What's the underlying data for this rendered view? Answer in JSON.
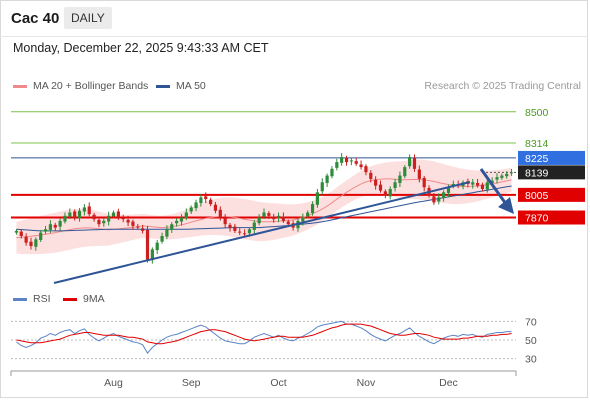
{
  "header": {
    "title": "Cac 40",
    "period": "DAILY"
  },
  "timestamp": "Monday, December 22, 2025 9:43:33 AM CET",
  "legend": {
    "ma": "MA 20 + Bollinger Bands",
    "ma50": "MA 50",
    "credit": "Research © 2025 Trading Central",
    "rsi": "RSI",
    "rsi_ma": "9MA"
  },
  "colors": {
    "candle_up": "#2e8b3a",
    "candle_down": "#cc1f1f",
    "bollinger_fill": "#fbd6d6",
    "ma20": "#f08a8a",
    "ma50": "#2f5597",
    "resistance": "#e00000",
    "support_line": "#2f5597",
    "green_level": "#7cc34a",
    "rsi": "#5b84c4",
    "rsi_ma": "#e00000"
  },
  "chart_data": [
    {
      "type": "candlestick",
      "ylim": [
        7450,
        8600
      ],
      "x_ticks": [
        "Aug",
        "Sep",
        "Oct",
        "Nov",
        "Dec"
      ],
      "levels": [
        {
          "label": "8500",
          "value": 8500,
          "style": "green"
        },
        {
          "label": "8314",
          "value": 8314,
          "style": "green"
        },
        {
          "label": "8225",
          "value": 8225,
          "style": "blue"
        },
        {
          "label": "8139",
          "value": 8139,
          "style": "current"
        },
        {
          "label": "8005",
          "value": 8005,
          "style": "red"
        },
        {
          "label": "7870",
          "value": 7870,
          "style": "red"
        }
      ],
      "close": [
        7790,
        7760,
        7720,
        7700,
        7740,
        7780,
        7800,
        7830,
        7810,
        7850,
        7880,
        7900,
        7870,
        7910,
        7930,
        7890,
        7860,
        7830,
        7850,
        7880,
        7900,
        7870,
        7860,
        7840,
        7820,
        7810,
        7790,
        7620,
        7680,
        7720,
        7760,
        7800,
        7830,
        7850,
        7870,
        7900,
        7930,
        7960,
        7990,
        7980,
        7950,
        7910,
        7870,
        7830,
        7810,
        7790,
        7780,
        7770,
        7800,
        7840,
        7870,
        7900,
        7880,
        7860,
        7880,
        7850,
        7830,
        7810,
        7850,
        7870,
        7900,
        7950,
        8020,
        8080,
        8120,
        8160,
        8200,
        8230,
        8200,
        8210,
        8190,
        8170,
        8140,
        8100,
        8060,
        8030,
        8000,
        8040,
        8080,
        8120,
        8170,
        8230,
        8160,
        8100,
        8050,
        8000,
        7960,
        7990,
        8020,
        8050,
        8070,
        8060,
        8080,
        8070,
        8080,
        8060,
        8040,
        8080,
        8090,
        8110,
        8120,
        8130,
        8139
      ],
      "ma20": [
        7750,
        7752,
        7755,
        7758,
        7762,
        7766,
        7770,
        7775,
        7780,
        7786,
        7792,
        7798,
        7803,
        7806,
        7808,
        7808,
        7806,
        7803,
        7800,
        7797,
        7800,
        7802,
        7805,
        7808,
        7812,
        7816,
        7820,
        7818,
        7815,
        7812,
        7810,
        7812,
        7815,
        7820,
        7826,
        7834,
        7842,
        7850,
        7858,
        7865,
        7870,
        7874,
        7876,
        7876,
        7874,
        7870,
        7865,
        7860,
        7855,
        7850,
        7846,
        7845,
        7845,
        7846,
        7848,
        7850,
        7852,
        7856,
        7862,
        7870,
        7880,
        7892,
        7905,
        7920,
        7938,
        7958,
        7980,
        8000,
        8020,
        8038,
        8055,
        8070,
        8082,
        8090,
        8095,
        8098,
        8100,
        8100,
        8098,
        8096,
        8095,
        8096,
        8097,
        8096,
        8094,
        8090,
        8085,
        8078,
        8072,
        8066,
        8062,
        8058,
        8056,
        8055,
        8056,
        8058,
        8062,
        8066,
        8070,
        8076,
        8082,
        8088,
        8095
      ],
      "ma50": [
        7800,
        7798,
        7796,
        7794,
        7792,
        7790,
        7790,
        7790,
        7790,
        7790,
        7791,
        7792,
        7793,
        7794,
        7795,
        7796,
        7797,
        7798,
        7799,
        7800,
        7800,
        7800,
        7800,
        7800,
        7800,
        7800,
        7800,
        7800,
        7800,
        7800,
        7800,
        7800,
        7800,
        7800,
        7800,
        7800,
        7801,
        7802,
        7803,
        7804,
        7805,
        7806,
        7807,
        7808,
        7809,
        7810,
        7810,
        7810,
        7810,
        7810,
        7810,
        7812,
        7814,
        7816,
        7818,
        7820,
        7822,
        7825,
        7828,
        7831,
        7834,
        7837,
        7840,
        7845,
        7850,
        7856,
        7862,
        7868,
        7874,
        7880,
        7886,
        7892,
        7898,
        7904,
        7910,
        7916,
        7922,
        7928,
        7934,
        7940,
        7946,
        7952,
        7958,
        7963,
        7968,
        7973,
        7978,
        7983,
        7988,
        7993,
        7998,
        8003,
        8008,
        8013,
        8018,
        8023,
        8028,
        8033,
        8038,
        8043,
        8048,
        8053,
        8058
      ]
    },
    {
      "type": "line",
      "name": "RSI",
      "ylim": [
        20,
        80
      ],
      "y_ticks": [
        70,
        50,
        30
      ],
      "series": [
        {
          "name": "RSI",
          "values": [
            48,
            44,
            42,
            44,
            47,
            52,
            54,
            57,
            55,
            58,
            60,
            61,
            57,
            60,
            62,
            56,
            52,
            49,
            52,
            55,
            57,
            54,
            52,
            50,
            48,
            47,
            45,
            36,
            42,
            46,
            50,
            53,
            55,
            56,
            58,
            60,
            62,
            64,
            66,
            64,
            60,
            56,
            52,
            49,
            48,
            47,
            46,
            46,
            49,
            53,
            55,
            57,
            55,
            53,
            55,
            52,
            50,
            49,
            52,
            54,
            57,
            60,
            64,
            66,
            67,
            68,
            69,
            70,
            67,
            67,
            65,
            63,
            60,
            56,
            53,
            51,
            49,
            52,
            55,
            57,
            60,
            63,
            58,
            54,
            51,
            48,
            46,
            49,
            52,
            54,
            55,
            54,
            56,
            55,
            56,
            54,
            53,
            56,
            57,
            58,
            58,
            59,
            59
          ]
        },
        {
          "name": "9MA",
          "values": [
            50,
            49,
            48,
            47,
            47,
            47,
            48,
            49,
            50,
            51,
            53,
            55,
            56,
            57,
            58,
            58,
            57,
            56,
            55,
            55,
            55,
            55,
            54,
            53,
            53,
            52,
            51,
            48,
            47,
            46,
            46,
            47,
            48,
            49,
            51,
            53,
            55,
            57,
            59,
            60,
            61,
            61,
            60,
            59,
            57,
            55,
            53,
            51,
            50,
            49,
            50,
            51,
            52,
            53,
            54,
            54,
            53,
            53,
            53,
            53,
            54,
            55,
            57,
            59,
            61,
            63,
            64,
            66,
            67,
            67,
            67,
            67,
            66,
            65,
            63,
            61,
            59,
            57,
            56,
            55,
            55,
            56,
            57,
            57,
            56,
            55,
            53,
            52,
            51,
            51,
            51,
            51,
            52,
            52,
            53,
            54,
            54,
            54,
            55,
            55,
            56,
            56,
            57
          ]
        }
      ]
    }
  ]
}
